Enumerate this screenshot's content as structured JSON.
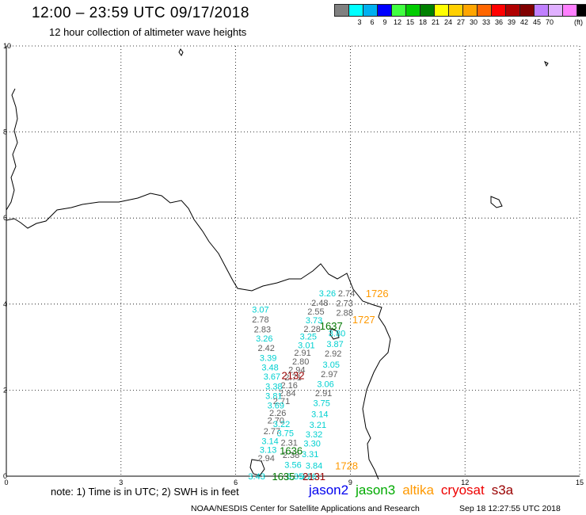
{
  "header": {
    "title": "12:00 – 23:59 UTC 09/17/2018",
    "subtitle": "12 hour collection of altimeter wave heights"
  },
  "legend": {
    "unit": "(ft)",
    "swatches": [
      {
        "color": "#808080",
        "label": ""
      },
      {
        "color": "#00ffff",
        "label": "3"
      },
      {
        "color": "#00b0f0",
        "label": "6"
      },
      {
        "color": "#0000ff",
        "label": "9"
      },
      {
        "color": "#40ff40",
        "label": "12"
      },
      {
        "color": "#00cc00",
        "label": "15"
      },
      {
        "color": "#008000",
        "label": "18"
      },
      {
        "color": "#ffff00",
        "label": "21"
      },
      {
        "color": "#ffd000",
        "label": "24"
      },
      {
        "color": "#ffa500",
        "label": "27"
      },
      {
        "color": "#ff6600",
        "label": "30"
      },
      {
        "color": "#ff0000",
        "label": "33"
      },
      {
        "color": "#b00000",
        "label": "36"
      },
      {
        "color": "#800000",
        "label": "39"
      },
      {
        "color": "#c080ff",
        "label": "42"
      },
      {
        "color": "#e0b0ff",
        "label": "45"
      },
      {
        "color": "#ff80ff",
        "label": "70"
      },
      {
        "color": "#000000",
        "label": ""
      }
    ]
  },
  "map": {
    "x_ticks": [
      "0",
      "3",
      "6",
      "9",
      "12",
      "15"
    ],
    "y_ticks": [
      "0",
      "2",
      "4",
      "6",
      "8",
      "10"
    ],
    "swh_labels": [
      {
        "x": 8.4,
        "y": 4.25,
        "text": "3.26",
        "color": "#00d0d0"
      },
      {
        "x": 8.9,
        "y": 4.25,
        "text": "2.74",
        "color": "#606060"
      },
      {
        "x": 8.2,
        "y": 4.03,
        "text": "2.48",
        "color": "#606060"
      },
      {
        "x": 8.85,
        "y": 4.02,
        "text": "2.73",
        "color": "#606060"
      },
      {
        "x": 6.65,
        "y": 3.88,
        "text": "3.07",
        "color": "#00d0d0"
      },
      {
        "x": 8.1,
        "y": 3.83,
        "text": "2.55",
        "color": "#606060"
      },
      {
        "x": 8.85,
        "y": 3.8,
        "text": "2.88",
        "color": "#606060"
      },
      {
        "x": 6.65,
        "y": 3.65,
        "text": "2.78",
        "color": "#606060"
      },
      {
        "x": 8.05,
        "y": 3.63,
        "text": "3.73",
        "color": "#00d0d0"
      },
      {
        "x": 6.7,
        "y": 3.42,
        "text": "2.83",
        "color": "#606060"
      },
      {
        "x": 8.0,
        "y": 3.43,
        "text": "2.28",
        "color": "#606060"
      },
      {
        "x": 8.65,
        "y": 3.32,
        "text": "3.80",
        "color": "#00d0d0"
      },
      {
        "x": 6.75,
        "y": 3.2,
        "text": "3.26",
        "color": "#00d0d0"
      },
      {
        "x": 7.9,
        "y": 3.25,
        "text": "3.25",
        "color": "#00d0d0"
      },
      {
        "x": 7.85,
        "y": 3.05,
        "text": "3.01",
        "color": "#00d0d0"
      },
      {
        "x": 8.6,
        "y": 3.08,
        "text": "3.87",
        "color": "#00d0d0"
      },
      {
        "x": 6.8,
        "y": 2.98,
        "text": "2.42",
        "color": "#606060"
      },
      {
        "x": 7.75,
        "y": 2.87,
        "text": "2.91",
        "color": "#606060"
      },
      {
        "x": 8.55,
        "y": 2.85,
        "text": "2.92",
        "color": "#606060"
      },
      {
        "x": 6.85,
        "y": 2.75,
        "text": "3.39",
        "color": "#00d0d0"
      },
      {
        "x": 7.7,
        "y": 2.67,
        "text": "2.80",
        "color": "#606060"
      },
      {
        "x": 8.5,
        "y": 2.6,
        "text": "3.05",
        "color": "#00d0d0"
      },
      {
        "x": 6.9,
        "y": 2.53,
        "text": "3.48",
        "color": "#00d0d0"
      },
      {
        "x": 7.6,
        "y": 2.48,
        "text": "2.94",
        "color": "#606060"
      },
      {
        "x": 8.45,
        "y": 2.38,
        "text": "2.97",
        "color": "#606060"
      },
      {
        "x": 6.95,
        "y": 2.32,
        "text": "3.67",
        "color": "#00d0d0"
      },
      {
        "x": 7.5,
        "y": 2.3,
        "text": "2.71",
        "color": "#606060"
      },
      {
        "x": 7.4,
        "y": 2.12,
        "text": "2.16",
        "color": "#606060"
      },
      {
        "x": 8.35,
        "y": 2.15,
        "text": "3.06",
        "color": "#00d0d0"
      },
      {
        "x": 7.0,
        "y": 2.09,
        "text": "3.38",
        "color": "#00d0d0"
      },
      {
        "x": 7.35,
        "y": 1.93,
        "text": "2.84",
        "color": "#606060"
      },
      {
        "x": 8.3,
        "y": 1.93,
        "text": "2.91",
        "color": "#606060"
      },
      {
        "x": 7.0,
        "y": 1.87,
        "text": "3.81",
        "color": "#00d0d0"
      },
      {
        "x": 7.2,
        "y": 1.75,
        "text": "2.71",
        "color": "#606060"
      },
      {
        "x": 7.05,
        "y": 1.65,
        "text": "3.69",
        "color": "#00d0d0"
      },
      {
        "x": 8.25,
        "y": 1.7,
        "text": "3.75",
        "color": "#00d0d0"
      },
      {
        "x": 7.1,
        "y": 1.47,
        "text": "2.26",
        "color": "#606060"
      },
      {
        "x": 8.2,
        "y": 1.45,
        "text": "3.14",
        "color": "#00d0d0"
      },
      {
        "x": 7.05,
        "y": 1.3,
        "text": "2.70",
        "color": "#606060"
      },
      {
        "x": 7.2,
        "y": 1.22,
        "text": "3.22",
        "color": "#00d0d0"
      },
      {
        "x": 8.15,
        "y": 1.2,
        "text": "3.21",
        "color": "#00d0d0"
      },
      {
        "x": 6.95,
        "y": 1.05,
        "text": "2.77",
        "color": "#606060"
      },
      {
        "x": 7.3,
        "y": 1.0,
        "text": "3.75",
        "color": "#00d0d0"
      },
      {
        "x": 8.05,
        "y": 0.98,
        "text": "3.32",
        "color": "#00d0d0"
      },
      {
        "x": 6.9,
        "y": 0.82,
        "text": "3.14",
        "color": "#00d0d0"
      },
      {
        "x": 7.4,
        "y": 0.78,
        "text": "2.31",
        "color": "#606060"
      },
      {
        "x": 8.0,
        "y": 0.76,
        "text": "3.30",
        "color": "#00d0d0"
      },
      {
        "x": 6.85,
        "y": 0.62,
        "text": "3.13",
        "color": "#00d0d0"
      },
      {
        "x": 7.45,
        "y": 0.5,
        "text": "2.38",
        "color": "#606060"
      },
      {
        "x": 7.95,
        "y": 0.52,
        "text": "3.31",
        "color": "#00d0d0"
      },
      {
        "x": 6.8,
        "y": 0.42,
        "text": "2.94",
        "color": "#606060"
      },
      {
        "x": 7.5,
        "y": 0.27,
        "text": "3.56",
        "color": "#00d0d0"
      },
      {
        "x": 8.05,
        "y": 0.25,
        "text": "3.84",
        "color": "#00d0d0"
      },
      {
        "x": 6.55,
        "y": 0.0,
        "text": "3.43",
        "color": "#00d0d0"
      },
      {
        "x": 7.55,
        "y": 0.0,
        "text": "3.35",
        "color": "#00d0d0"
      },
      {
        "x": 7.9,
        "y": 0.0,
        "text": "3.26",
        "color": "#00d0d0"
      }
    ],
    "pass_labels": [
      {
        "x": 9.7,
        "y": 4.25,
        "text": "1726",
        "color": "#ff9900"
      },
      {
        "x": 9.35,
        "y": 3.65,
        "text": "1727",
        "color": "#ff9900"
      },
      {
        "x": 8.5,
        "y": 3.5,
        "text": "1637",
        "color": "#007700"
      },
      {
        "x": 7.5,
        "y": 2.35,
        "text": "2132",
        "color": "#990000"
      },
      {
        "x": 7.45,
        "y": 0.6,
        "text": "1636",
        "color": "#007700"
      },
      {
        "x": 8.9,
        "y": 0.25,
        "text": "1728",
        "color": "#ff9900"
      },
      {
        "x": 7.25,
        "y": 0.0,
        "text": "1635",
        "color": "#007700"
      },
      {
        "x": 8.05,
        "y": 0.0,
        "text": "2131",
        "color": "#990000"
      }
    ]
  },
  "note": "note: 1) Time is in UTC; 2) SWH is in feet",
  "satellites": [
    {
      "name": "jason2",
      "color": "#0000ee"
    },
    {
      "name": "jason3",
      "color": "#00aa00"
    },
    {
      "name": "altika",
      "color": "#ff9900"
    },
    {
      "name": "cryosat",
      "color": "#ee0000"
    },
    {
      "name": "s3a",
      "color": "#990000"
    }
  ],
  "footer": {
    "center": "NOAA/NESDIS Center for Satellite Applications and Research",
    "timestamp": "Sep 18 12:27:55 UTC 2018"
  }
}
